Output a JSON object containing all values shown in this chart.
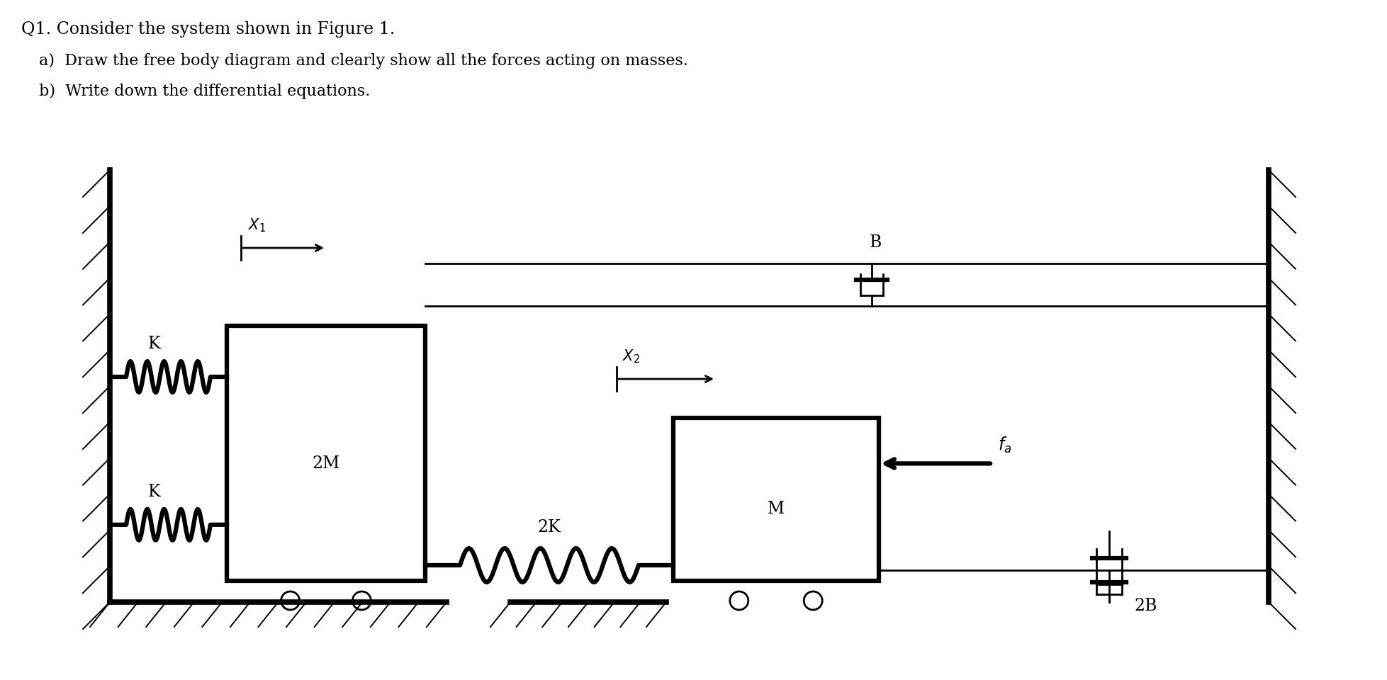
{
  "title_line1": "Q1. Consider the system shown in Figure 1.",
  "title_line2a": "a)  Draw the free body diagram and clearly show all the forces acting on masses.",
  "title_line2b": "b)  Write down the differential equations.",
  "bg_color": "#ffffff",
  "line_color": "#000000",
  "lw": 2.0,
  "lw_thick": 4.5,
  "lw_wall": 5.5
}
